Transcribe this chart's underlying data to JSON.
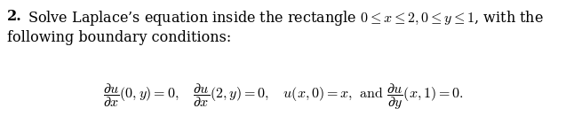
{
  "background_color": "#ffffff",
  "text_color": "#000000",
  "bold_number": "\\textbf{2.}",
  "line1_bold": "2.",
  "line1_rest": " Solve Laplace’s equation inside the rectangle $0 \\leq x \\leq 2, 0 \\leq y \\leq 1$, with the",
  "line2": "following boundary conditions:",
  "bc_line": "$\\dfrac{\\partial u}{\\partial x}(0,y) = 0, \\quad \\dfrac{\\partial u}{\\partial x}(2,y) = 0, \\quad u(x,0) = x, \\text{ and } \\dfrac{\\partial u}{\\partial y}(x,1) = 0.$",
  "font_size_text": 11.5,
  "font_size_bc": 11.5,
  "fig_width": 6.37,
  "fig_height": 1.49,
  "dpi": 100
}
